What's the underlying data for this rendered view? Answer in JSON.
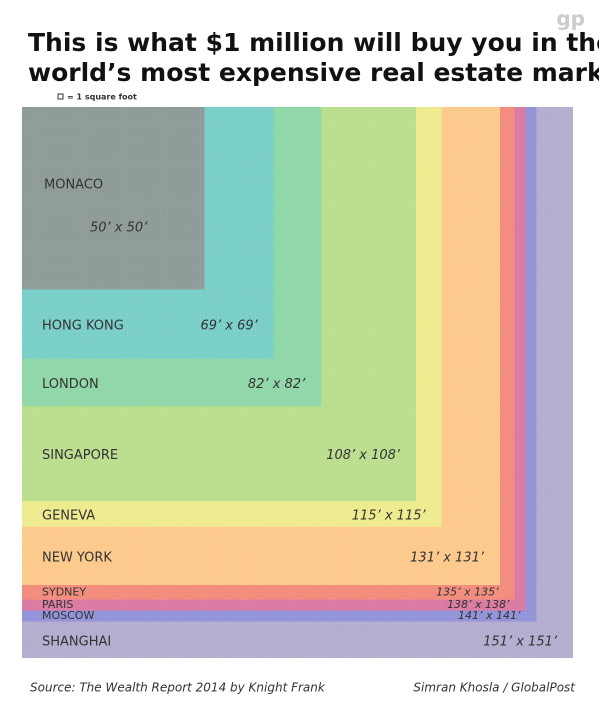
{
  "chart_data": {
    "type": "nested-squares",
    "title": [
      "This is what $1 million will buy you in the",
      "world’s most expensive real estate markets:"
    ],
    "legend_note": "= 1 square foot",
    "logo": "gp",
    "categories": [
      "MONACO",
      "HONG KONG",
      "LONDON",
      "SINGAPORE",
      "GENEVA",
      "NEW YORK",
      "SYDNEY",
      "PARIS",
      "MOSCOW",
      "SHANGHAI"
    ],
    "values": [
      50,
      69,
      82,
      108,
      115,
      131,
      135,
      138,
      141,
      151
    ],
    "value_labels": [
      "50’ x 50’",
      "69’ x 69’",
      "82’ x 82’",
      "108’ x 108’",
      "115’ x 115’",
      "131’ x 131’",
      "135’ x 135’",
      "138’ x 138’",
      "141’ x 141’",
      "151’ x 151’"
    ],
    "colors": [
      "#8f9b99",
      "#79cfc8",
      "#90d7a8",
      "#bade8e",
      "#eeeb8e",
      "#fdc98c",
      "#f28c7c",
      "#d97aa2",
      "#9292d8",
      "#b4adcf"
    ],
    "source": "Source: The Wealth Report 2014 by Knight Frank",
    "credit": "Simran Khosla / GlobalPost"
  }
}
